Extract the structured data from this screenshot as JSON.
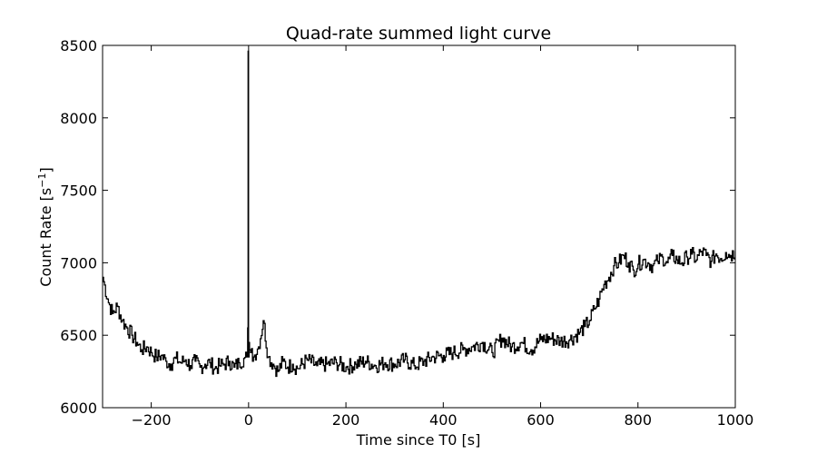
{
  "chart_data": {
    "type": "line",
    "title": "Quad-rate summed light curve",
    "xlabel": "Time since T0 [s]",
    "ylabel_main": "Count Rate [s",
    "ylabel_sup": "−1",
    "ylabel_end": "]",
    "xlim": [
      -300,
      1000
    ],
    "ylim": [
      6000,
      8500
    ],
    "xticks": [
      -200,
      0,
      200,
      400,
      600,
      800,
      1000
    ],
    "xtick_labels": [
      "−200",
      "0",
      "200",
      "400",
      "600",
      "800",
      "1000"
    ],
    "yticks": [
      6000,
      6500,
      7000,
      7500,
      8000,
      8500
    ],
    "ytick_labels": [
      "6000",
      "6500",
      "7000",
      "7500",
      "8000",
      "8500"
    ],
    "grid": false,
    "line_color": "#000000",
    "series": [
      {
        "x": [
          -300,
          -290,
          -280,
          -270,
          -260,
          -250,
          -240,
          -230,
          -220,
          -210,
          -200,
          -190,
          -180,
          -170,
          -160,
          -150,
          -140,
          -130,
          -120,
          -110,
          -100,
          -90,
          -80,
          -70,
          -60,
          -50,
          -40,
          -30,
          -20,
          -10,
          -4,
          -2,
          -1,
          0,
          1,
          2,
          4,
          10,
          20,
          30,
          40,
          50,
          60,
          70,
          80,
          90,
          100,
          120,
          140,
          160,
          180,
          200,
          220,
          240,
          260,
          280,
          300,
          320,
          340,
          360,
          380,
          400,
          420,
          440,
          460,
          480,
          500,
          520,
          540,
          560,
          580,
          600,
          620,
          640,
          660,
          680,
          690,
          700,
          710,
          720,
          730,
          740,
          750,
          760,
          770,
          780,
          790,
          800,
          810,
          820,
          830,
          840,
          850,
          860,
          870,
          880,
          890,
          900,
          910,
          920,
          930,
          940,
          950,
          960,
          970,
          980,
          990,
          1000
        ],
        "y": [
          6900,
          6750,
          6650,
          6700,
          6600,
          6550,
          6500,
          6450,
          6400,
          6420,
          6380,
          6350,
          6360,
          6320,
          6300,
          6340,
          6310,
          6330,
          6290,
          6320,
          6280,
          6300,
          6310,
          6270,
          6290,
          6300,
          6320,
          6280,
          6310,
          6340,
          6350,
          6550,
          8460,
          6350,
          6450,
          6400,
          6380,
          6350,
          6420,
          6600,
          6350,
          6300,
          6250,
          6320,
          6280,
          6300,
          6270,
          6330,
          6290,
          6300,
          6310,
          6280,
          6300,
          6320,
          6290,
          6310,
          6300,
          6330,
          6290,
          6320,
          6350,
          6360,
          6380,
          6400,
          6420,
          6450,
          6380,
          6480,
          6420,
          6450,
          6400,
          6470,
          6480,
          6460,
          6470,
          6520,
          6560,
          6600,
          6680,
          6750,
          6850,
          6900,
          6980,
          7000,
          7050,
          7000,
          6950,
          6990,
          7020,
          7000,
          6980,
          7010,
          7040,
          7000,
          7050,
          7020,
          7000,
          7040,
          7060,
          7020,
          7080,
          7050,
          7010,
          7060,
          7030,
          7070,
          7050,
          7080
        ]
      }
    ]
  }
}
